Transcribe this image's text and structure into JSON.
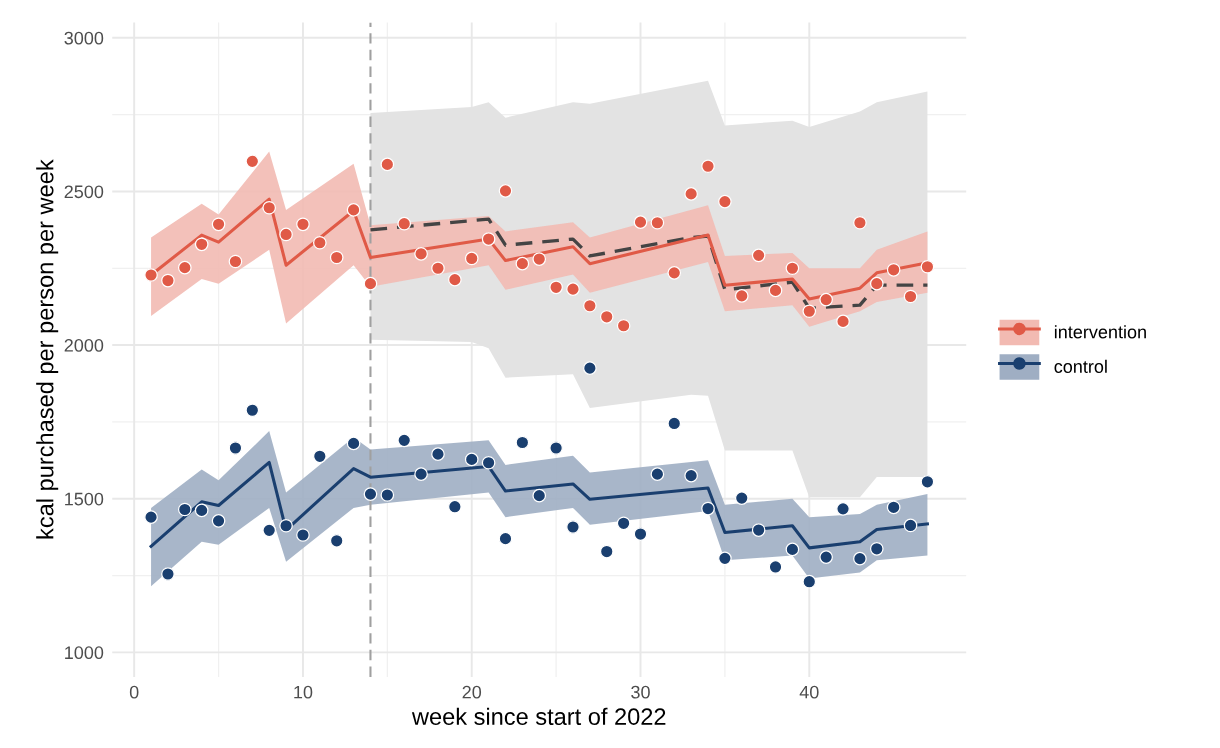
{
  "chart_data": {
    "type": "line",
    "xlabel": "week since start of 2022",
    "ylabel": "kcal purchased per person per week",
    "xlim": [
      -1.3,
      49.3
    ],
    "xticks": [
      0,
      10,
      20,
      30,
      40
    ],
    "ylim": [
      920,
      3050
    ],
    "yticks": [
      1000,
      1500,
      2000,
      2500,
      3000
    ],
    "grid": true,
    "legend": "right",
    "ref_lines": [
      {
        "axis": "x",
        "value": 14,
        "color": "#a0a0a0",
        "line_style": "dashed"
      }
    ],
    "series": [
      {
        "color": "#444444",
        "line_style": "dashed",
        "x": [
          14,
          20,
          21,
          22,
          26,
          27,
          33,
          34,
          35,
          39,
          40,
          43,
          44,
          47
        ],
        "values": [
          2375,
          2405,
          2410,
          2325,
          2345,
          2290,
          2350,
          2355,
          2180,
          2205,
          2120,
          2130,
          2195,
          2195
        ],
        "lower": [
          2017,
          2010,
          1990,
          1894,
          1905,
          1795,
          1838,
          1835,
          1657,
          1657,
          1505,
          1505,
          1571,
          1571
        ],
        "upper": [
          2755,
          2775,
          2790,
          2740,
          2790,
          2785,
          2850,
          2860,
          2715,
          2730,
          2710,
          2760,
          2790,
          2825
        ]
      },
      {
        "name": "intervention",
        "color": "#e05a47",
        "x": [
          1,
          4,
          5,
          8,
          9,
          13,
          14,
          21,
          22,
          26,
          27,
          34,
          35,
          39,
          40,
          43,
          44,
          47
        ],
        "values": [
          2228,
          2358,
          2335,
          2475,
          2260,
          2437,
          2285,
          2345,
          2275,
          2320,
          2265,
          2358,
          2195,
          2215,
          2150,
          2185,
          2235,
          2268
        ],
        "lower": [
          2095,
          2215,
          2200,
          2310,
          2070,
          2260,
          2190,
          2260,
          2180,
          2230,
          2170,
          2270,
          2110,
          2130,
          2060,
          2110,
          2140,
          2170
        ],
        "upper": [
          2350,
          2460,
          2425,
          2630,
          2440,
          2590,
          2390,
          2420,
          2370,
          2400,
          2350,
          2455,
          2290,
          2300,
          2250,
          2250,
          2310,
          2370
        ]
      },
      {
        "name": "control",
        "color": "#1a3f6f",
        "x": [
          1,
          4,
          5,
          8,
          9,
          13,
          14,
          21,
          22,
          26,
          27,
          34,
          35,
          39,
          40,
          43,
          44,
          47
        ],
        "values": [
          1345,
          1490,
          1478,
          1618,
          1398,
          1598,
          1570,
          1605,
          1525,
          1548,
          1498,
          1535,
          1390,
          1412,
          1340,
          1360,
          1400,
          1418
        ],
        "lower": [
          1215,
          1360,
          1350,
          1470,
          1295,
          1470,
          1480,
          1520,
          1440,
          1470,
          1415,
          1460,
          1300,
          1315,
          1240,
          1260,
          1300,
          1315
        ],
        "upper": [
          1470,
          1595,
          1560,
          1720,
          1520,
          1700,
          1660,
          1690,
          1610,
          1640,
          1585,
          1625,
          1480,
          1500,
          1440,
          1450,
          1480,
          1515
        ]
      },
      {
        "type": "scatter",
        "color": "#e05a47",
        "marker": "circle",
        "x": [
          1,
          2,
          3,
          4,
          5,
          6,
          7,
          8,
          9,
          10,
          11,
          12,
          13,
          14,
          15,
          16,
          17,
          18,
          19,
          20,
          21,
          22,
          23,
          24,
          25,
          26,
          27,
          28,
          29,
          30,
          31,
          32,
          33,
          34,
          35,
          36,
          37,
          38,
          39,
          40,
          41,
          42,
          43,
          44,
          45,
          46,
          47
        ],
        "values": [
          2228,
          2210,
          2252,
          2328,
          2393,
          2272,
          2598,
          2447,
          2360,
          2393,
          2333,
          2285,
          2440,
          2200,
          2588,
          2395,
          2297,
          2250,
          2213,
          2282,
          2345,
          2502,
          2265,
          2280,
          2188,
          2182,
          2128,
          2092,
          2063,
          2400,
          2398,
          2235,
          2492,
          2582,
          2467,
          2160,
          2292,
          2178,
          2250,
          2110,
          2148,
          2077,
          2398,
          2200,
          2245,
          2158,
          2255
        ]
      },
      {
        "type": "scatter",
        "color": "#1a3f6f",
        "marker": "circle",
        "x": [
          1,
          2,
          3,
          4,
          5,
          6,
          7,
          8,
          9,
          10,
          11,
          12,
          13,
          14,
          15,
          16,
          17,
          18,
          19,
          20,
          21,
          22,
          23,
          24,
          25,
          26,
          27,
          28,
          29,
          30,
          31,
          32,
          33,
          34,
          35,
          36,
          37,
          38,
          39,
          40,
          41,
          42,
          43,
          44,
          45,
          46,
          47
        ],
        "values": [
          1440,
          1255,
          1465,
          1462,
          1428,
          1665,
          1788,
          1397,
          1412,
          1382,
          1638,
          1363,
          1680,
          1515,
          1512,
          1690,
          1580,
          1645,
          1474,
          1628,
          1617,
          1370,
          1683,
          1510,
          1665,
          1408,
          1925,
          1328,
          1420,
          1385,
          1580,
          1745,
          1575,
          1468,
          1306,
          1502,
          1398,
          1278,
          1335,
          1230,
          1310,
          1467,
          1305,
          1337,
          1472,
          1413,
          1555
        ]
      }
    ]
  }
}
